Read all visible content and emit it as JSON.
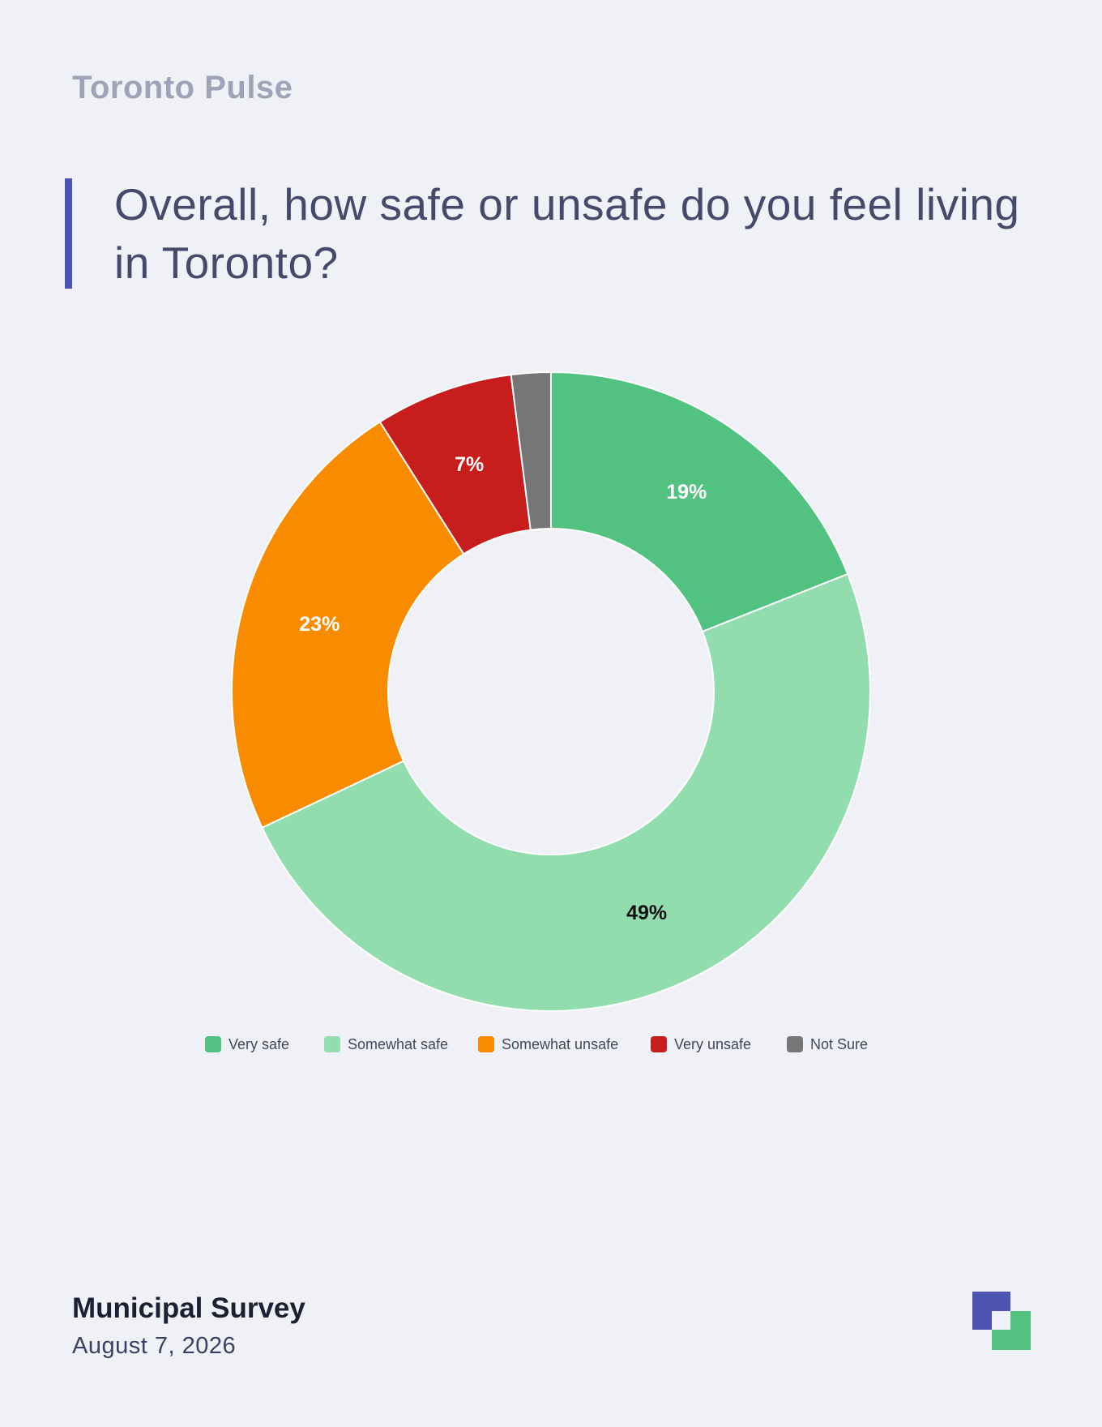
{
  "brand": "Toronto Pulse",
  "title": "Overall, how safe or unsafe do you feel living in Toronto?",
  "footer": {
    "title": "Municipal Survey",
    "date": "August 7, 2026"
  },
  "colors": {
    "accent": "#4e55b0",
    "logo_primary": "#4e55b0",
    "logo_secondary": "#52c281"
  },
  "logo_icon": "stacked-squares-logo",
  "chart_data": {
    "type": "pie",
    "donut": true,
    "title": "Overall, how safe or unsafe do you feel living in Toronto?",
    "categories": [
      "Very safe",
      "Somewhat safe",
      "Somewhat unsafe",
      "Very unsafe",
      "Not Sure"
    ],
    "values": [
      19,
      49,
      23,
      7,
      2
    ],
    "labels": [
      "19%",
      "49%",
      "23%",
      "7%",
      ""
    ],
    "colors": [
      "#52c281",
      "#91ddae",
      "#f98b00",
      "#c81d1d",
      "#767676"
    ],
    "label_colors": [
      "#ffffff",
      "#111111",
      "#ffffff",
      "#ffffff",
      "#ffffff"
    ],
    "legend_position": "bottom"
  }
}
